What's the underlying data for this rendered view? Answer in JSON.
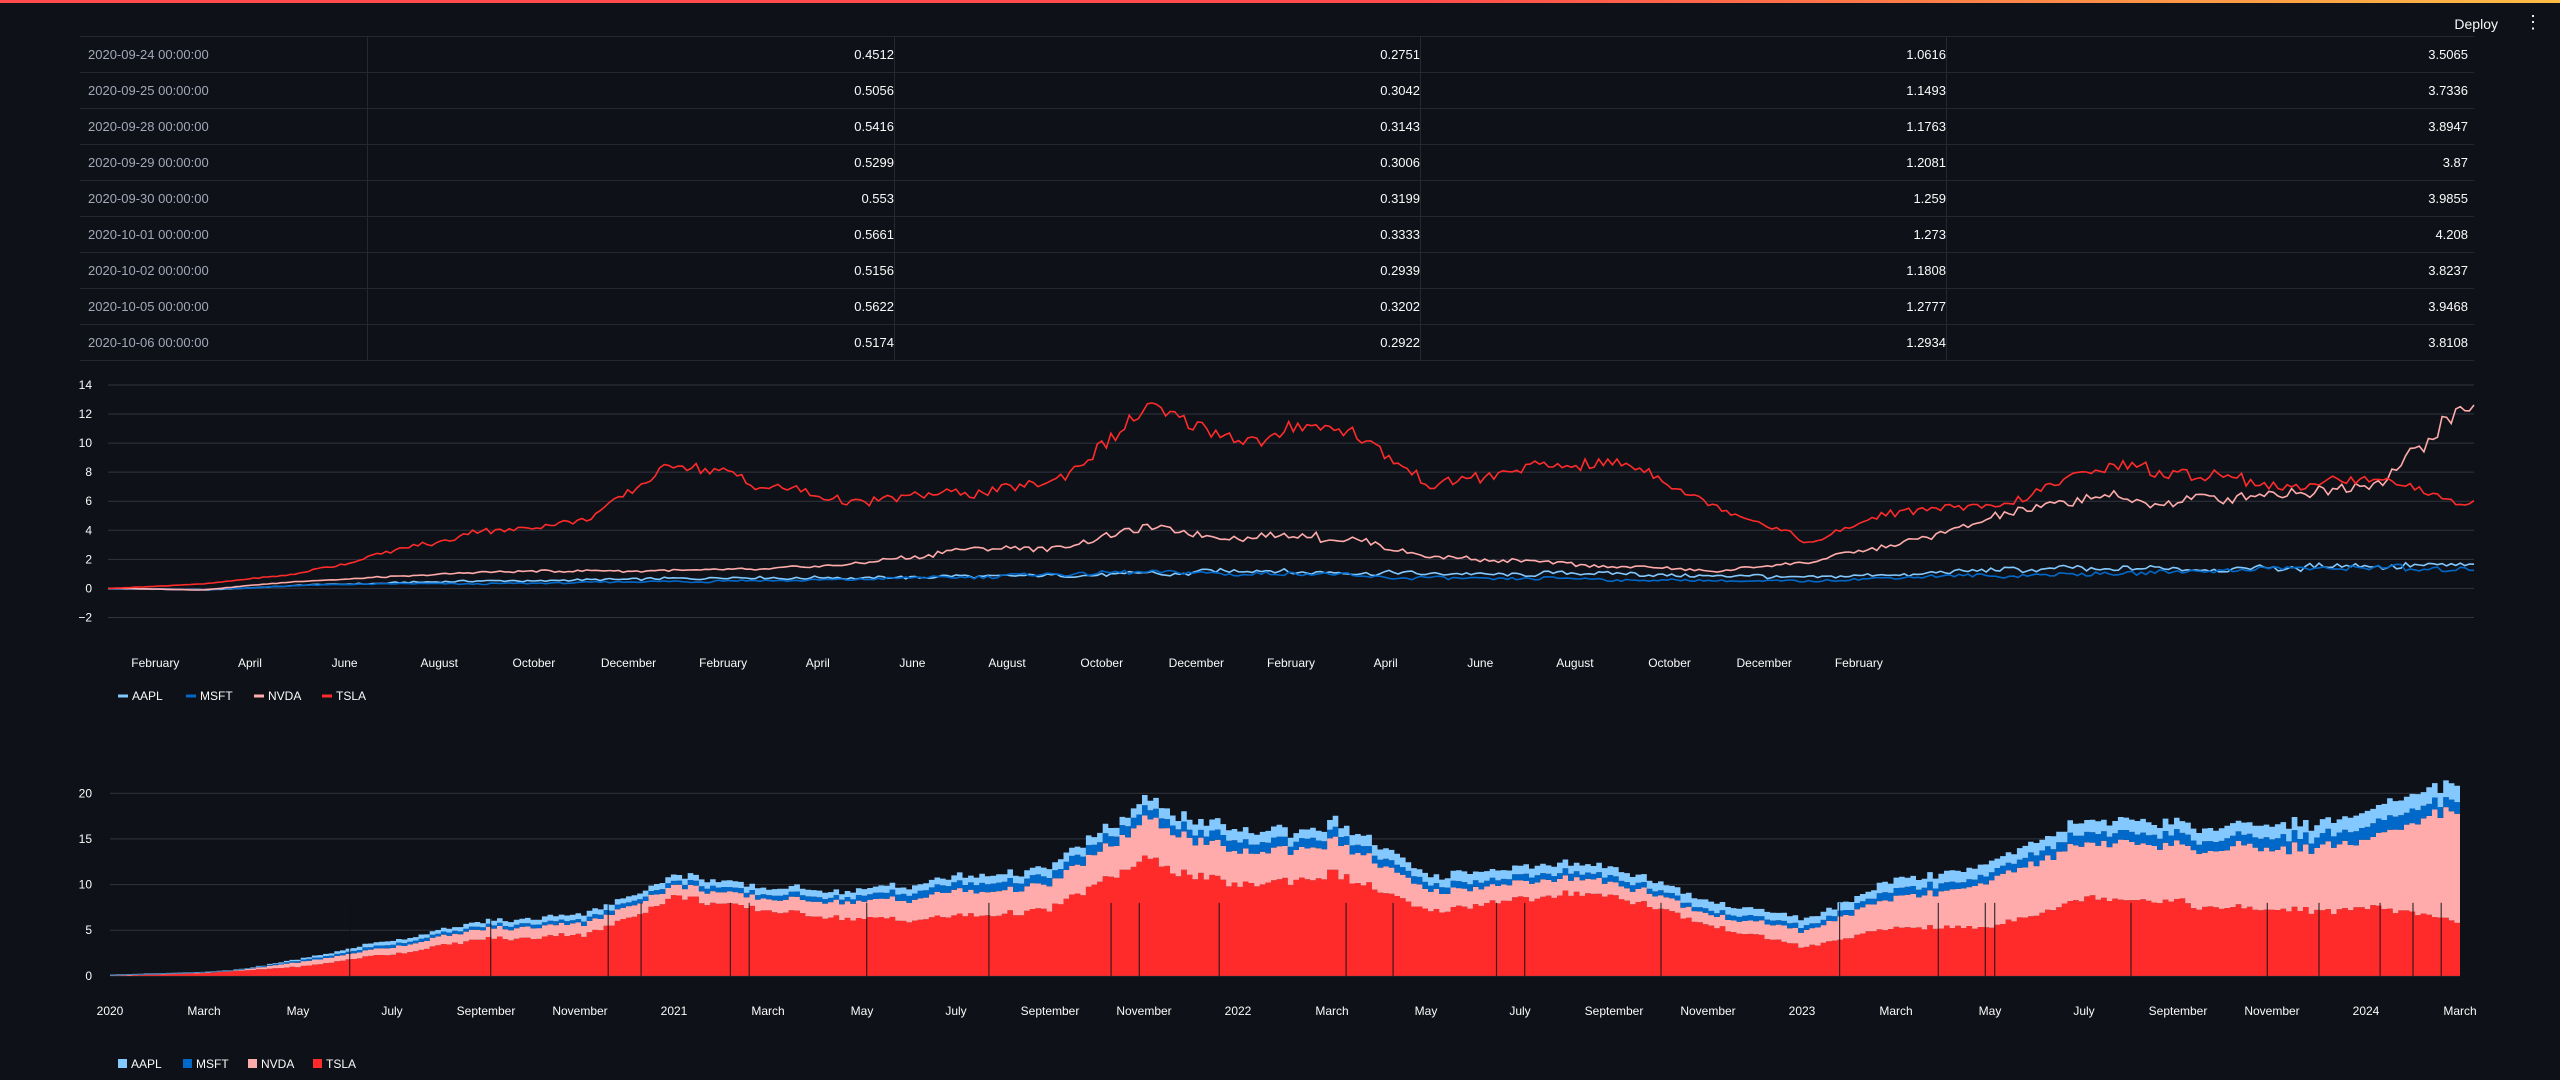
{
  "header": {
    "deploy_label": "Deploy",
    "menu_icon": "kebab-menu-icon"
  },
  "table": {
    "rows": [
      {
        "date": "2020-09-24 00:00:00",
        "v": [
          "0.4512",
          "0.2751",
          "1.0616",
          "3.5065"
        ]
      },
      {
        "date": "2020-09-25 00:00:00",
        "v": [
          "0.5056",
          "0.3042",
          "1.1493",
          "3.7336"
        ]
      },
      {
        "date": "2020-09-28 00:00:00",
        "v": [
          "0.5416",
          "0.3143",
          "1.1763",
          "3.8947"
        ]
      },
      {
        "date": "2020-09-29 00:00:00",
        "v": [
          "0.5299",
          "0.3006",
          "1.2081",
          "3.87"
        ]
      },
      {
        "date": "2020-09-30 00:00:00",
        "v": [
          "0.553",
          "0.3199",
          "1.259",
          "3.9855"
        ]
      },
      {
        "date": "2020-10-01 00:00:00",
        "v": [
          "0.5661",
          "0.3333",
          "1.273",
          "4.208"
        ]
      },
      {
        "date": "2020-10-02 00:00:00",
        "v": [
          "0.5156",
          "0.2939",
          "1.1808",
          "3.8237"
        ]
      },
      {
        "date": "2020-10-05 00:00:00",
        "v": [
          "0.5622",
          "0.3202",
          "1.2777",
          "3.9468"
        ]
      },
      {
        "date": "2020-10-06 00:00:00",
        "v": [
          "0.5174",
          "0.2922",
          "1.2934",
          "3.8108"
        ]
      }
    ]
  },
  "colors": {
    "AAPL": "#83c9ff",
    "MSFT": "#0068c9",
    "NVDA": "#ffabab",
    "TSLA": "#ff2b2b"
  },
  "chart_data": [
    {
      "type": "line",
      "x_range": [
        "2020-01-02",
        "2024-03-01"
      ],
      "ylim": [
        -3,
        14
      ],
      "yticks": [
        -2,
        0,
        2,
        4,
        6,
        8,
        10,
        12,
        14
      ],
      "xticks": [
        "February",
        "April",
        "June",
        "August",
        "October",
        "December",
        "February",
        "April",
        "June",
        "August",
        "October",
        "December",
        "February",
        "April",
        "June",
        "August",
        "October",
        "December",
        "February"
      ],
      "grid": "horizontal",
      "legend_position": "bottom-left",
      "series": [
        {
          "name": "AAPL",
          "color": "#83c9ff",
          "x": [
            "2020-01",
            "2020-03",
            "2020-05",
            "2020-07",
            "2020-09",
            "2020-11",
            "2021-01",
            "2021-03",
            "2021-05",
            "2021-07",
            "2021-09",
            "2021-11",
            "2022-01",
            "2022-03",
            "2022-05",
            "2022-07",
            "2022-09",
            "2022-11",
            "2023-01",
            "2023-03",
            "2023-05",
            "2023-07",
            "2023-09",
            "2023-11",
            "2024-01",
            "2024-03"
          ],
          "values": [
            0,
            -0.1,
            0.2,
            0.4,
            0.5,
            0.6,
            0.7,
            0.7,
            0.7,
            0.8,
            0.9,
            1.0,
            1.2,
            1.1,
            1.0,
            1.0,
            1.0,
            0.9,
            0.8,
            1.0,
            1.2,
            1.4,
            1.3,
            1.4,
            1.6,
            1.5
          ]
        },
        {
          "name": "MSFT",
          "color": "#0068c9",
          "x": [
            "2020-01",
            "2020-03",
            "2020-05",
            "2020-07",
            "2020-09",
            "2020-11",
            "2021-01",
            "2021-03",
            "2021-05",
            "2021-07",
            "2021-09",
            "2021-11",
            "2022-01",
            "2022-03",
            "2022-05",
            "2022-07",
            "2022-09",
            "2022-11",
            "2023-01",
            "2023-03",
            "2023-05",
            "2023-07",
            "2023-09",
            "2023-11",
            "2024-01",
            "2024-03"
          ],
          "values": [
            0,
            -0.1,
            0.2,
            0.3,
            0.3,
            0.4,
            0.5,
            0.5,
            0.6,
            0.8,
            0.9,
            1.1,
            1.0,
            0.9,
            0.7,
            0.7,
            0.6,
            0.5,
            0.5,
            0.8,
            0.9,
            1.1,
            1.1,
            1.3,
            1.4,
            1.4
          ]
        },
        {
          "name": "NVDA",
          "color": "#ffabab",
          "x": [
            "2020-01",
            "2020-03",
            "2020-05",
            "2020-07",
            "2020-09",
            "2020-11",
            "2021-01",
            "2021-03",
            "2021-05",
            "2021-07",
            "2021-09",
            "2021-11",
            "2022-01",
            "2022-03",
            "2022-05",
            "2022-07",
            "2022-09",
            "2022-11",
            "2023-01",
            "2023-03",
            "2023-05",
            "2023-07",
            "2023-09",
            "2023-11",
            "2024-01",
            "2024-03"
          ],
          "values": [
            0,
            -0.1,
            0.5,
            0.8,
            1.1,
            1.2,
            1.2,
            1.3,
            1.8,
            2.6,
            2.8,
            4.2,
            3.5,
            3.5,
            2.2,
            1.8,
            1.5,
            1.2,
            1.8,
            3.2,
            5.0,
            6.2,
            6.0,
            6.5,
            7.5,
            12.5
          ]
        },
        {
          "name": "TSLA",
          "color": "#ff2b2b",
          "x": [
            "2020-01",
            "2020-03",
            "2020-05",
            "2020-07",
            "2020-09",
            "2020-11",
            "2021-01",
            "2021-03",
            "2021-05",
            "2021-07",
            "2021-09",
            "2021-11",
            "2022-01",
            "2022-03",
            "2022-05",
            "2022-07",
            "2022-09",
            "2022-11",
            "2023-01",
            "2023-03",
            "2023-05",
            "2023-07",
            "2023-09",
            "2023-11",
            "2024-01",
            "2024-03"
          ],
          "values": [
            0,
            0.3,
            1.0,
            2.5,
            4.0,
            4.5,
            8.5,
            7.0,
            6.0,
            6.5,
            7.5,
            12.5,
            10.0,
            11.5,
            7.0,
            8.5,
            9.0,
            5.5,
            3.2,
            5.5,
            5.5,
            8.5,
            8.0,
            7.0,
            7.5,
            5.8
          ]
        }
      ]
    },
    {
      "type": "area",
      "stacked": true,
      "x_range": [
        "2020-01-01",
        "2024-03-01"
      ],
      "ylim": [
        -1,
        22
      ],
      "yticks": [
        0,
        5,
        10,
        15,
        20
      ],
      "xticks": [
        "2020",
        "March",
        "May",
        "July",
        "September",
        "November",
        "2021",
        "March",
        "May",
        "July",
        "September",
        "November",
        "2022",
        "March",
        "May",
        "July",
        "September",
        "November",
        "2023",
        "March",
        "May",
        "July",
        "September",
        "November",
        "2024",
        "March"
      ],
      "grid": "horizontal",
      "legend_position": "bottom-left",
      "series": [
        {
          "name": "AAPL",
          "color": "#83c9ff",
          "x": [
            "2020-01",
            "2020-03",
            "2020-05",
            "2020-07",
            "2020-09",
            "2020-11",
            "2021-01",
            "2021-03",
            "2021-05",
            "2021-07",
            "2021-09",
            "2021-11",
            "2022-01",
            "2022-03",
            "2022-05",
            "2022-07",
            "2022-09",
            "2022-11",
            "2023-01",
            "2023-03",
            "2023-05",
            "2023-07",
            "2023-09",
            "2023-11",
            "2024-01",
            "2024-03"
          ],
          "values": [
            0,
            -0.1,
            0.2,
            0.4,
            0.5,
            0.6,
            0.7,
            0.7,
            0.7,
            0.8,
            0.9,
            1.0,
            1.2,
            1.1,
            1.0,
            1.0,
            1.0,
            0.9,
            0.8,
            1.0,
            1.2,
            1.4,
            1.3,
            1.4,
            1.6,
            1.5
          ]
        },
        {
          "name": "MSFT",
          "color": "#0068c9",
          "x": [
            "2020-01",
            "2020-03",
            "2020-05",
            "2020-07",
            "2020-09",
            "2020-11",
            "2021-01",
            "2021-03",
            "2021-05",
            "2021-07",
            "2021-09",
            "2021-11",
            "2022-01",
            "2022-03",
            "2022-05",
            "2022-07",
            "2022-09",
            "2022-11",
            "2023-01",
            "2023-03",
            "2023-05",
            "2023-07",
            "2023-09",
            "2023-11",
            "2024-01",
            "2024-03"
          ],
          "values": [
            0,
            -0.1,
            0.2,
            0.3,
            0.3,
            0.4,
            0.5,
            0.5,
            0.6,
            0.8,
            0.9,
            1.1,
            1.0,
            0.9,
            0.7,
            0.7,
            0.6,
            0.5,
            0.5,
            0.8,
            0.9,
            1.1,
            1.1,
            1.3,
            1.4,
            1.4
          ]
        },
        {
          "name": "NVDA",
          "color": "#ffabab",
          "x": [
            "2020-01",
            "2020-03",
            "2020-05",
            "2020-07",
            "2020-09",
            "2020-11",
            "2021-01",
            "2021-03",
            "2021-05",
            "2021-07",
            "2021-09",
            "2021-11",
            "2022-01",
            "2022-03",
            "2022-05",
            "2022-07",
            "2022-09",
            "2022-11",
            "2023-01",
            "2023-03",
            "2023-05",
            "2023-07",
            "2023-09",
            "2023-11",
            "2024-01",
            "2024-03"
          ],
          "values": [
            0,
            -0.1,
            0.5,
            0.8,
            1.1,
            1.2,
            1.2,
            1.3,
            1.8,
            2.6,
            2.8,
            4.2,
            3.5,
            3.5,
            2.2,
            1.8,
            1.5,
            1.2,
            1.8,
            3.2,
            5.0,
            6.2,
            6.0,
            6.5,
            7.5,
            12.5
          ]
        },
        {
          "name": "TSLA",
          "color": "#ff2b2b",
          "x": [
            "2020-01",
            "2020-03",
            "2020-05",
            "2020-07",
            "2020-09",
            "2020-11",
            "2021-01",
            "2021-03",
            "2021-05",
            "2021-07",
            "2021-09",
            "2021-11",
            "2022-01",
            "2022-03",
            "2022-05",
            "2022-07",
            "2022-09",
            "2022-11",
            "2023-01",
            "2023-03",
            "2023-05",
            "2023-07",
            "2023-09",
            "2023-11",
            "2024-01",
            "2024-03"
          ],
          "values": [
            0,
            0.3,
            1.0,
            2.5,
            4.0,
            4.5,
            8.5,
            7.0,
            6.0,
            6.5,
            7.5,
            12.5,
            10.0,
            11.5,
            7.0,
            8.5,
            9.0,
            5.5,
            3.2,
            5.5,
            5.5,
            8.5,
            8.0,
            7.0,
            7.5,
            5.8
          ]
        }
      ]
    }
  ]
}
